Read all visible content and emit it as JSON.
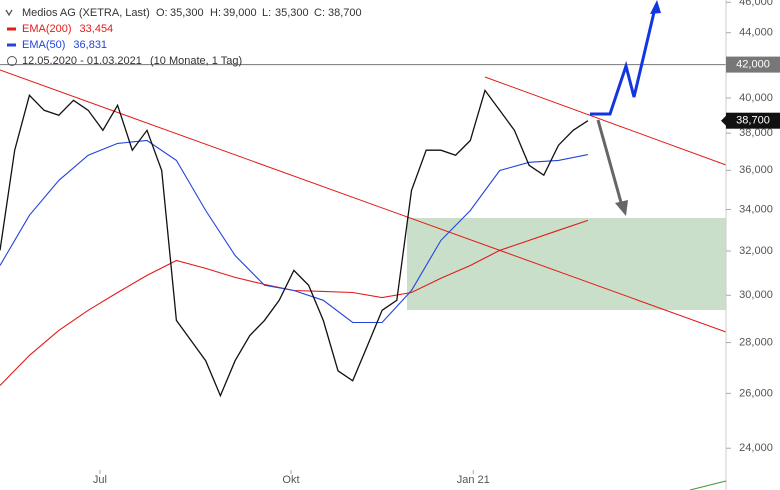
{
  "chart_data": {
    "type": "line",
    "log_scale": true,
    "info": {
      "instrument": "Medios AG (XETRA, Last)",
      "ohlc": [
        {
          "label": "O:",
          "value": "35,300"
        },
        {
          "label": "H:",
          "value": "39,000"
        },
        {
          "label": "L:",
          "value": "35,300"
        },
        {
          "label": "C:",
          "value": "38,700"
        }
      ],
      "period": "12.05.2020 - 01.03.2021",
      "period_note": "(10 Monate, 1 Tag)"
    },
    "xlim": [
      0,
      247
    ],
    "xticks": [
      {
        "value": 34,
        "label": "Jul"
      },
      {
        "value": 99,
        "label": "Okt"
      },
      {
        "value": 161,
        "label": "Jan 21"
      }
    ],
    "ylim": [
      23250,
      46150
    ],
    "yticks": [
      {
        "value": 24000,
        "label": "24,000"
      },
      {
        "value": 26000,
        "label": "26,000"
      },
      {
        "value": 28000,
        "label": "28,000"
      },
      {
        "value": 30000,
        "label": "30,000"
      },
      {
        "value": 32000,
        "label": "32,000"
      },
      {
        "value": 34000,
        "label": "34,000"
      },
      {
        "value": 36000,
        "label": "36,000"
      },
      {
        "value": 38000,
        "label": "38,000"
      },
      {
        "value": 40000,
        "label": "40,000"
      },
      {
        "value": 42000,
        "label": "42,000"
      },
      {
        "value": 44000,
        "label": "44,000"
      },
      {
        "value": 46000,
        "label": "46,000"
      }
    ],
    "reference_line": {
      "value": 42000,
      "label": "42,000"
    },
    "last_price": {
      "value": 38700,
      "label": "38,700"
    },
    "series": [
      {
        "name": "EMA(200)",
        "color": "#e31b1b",
        "last_label": "33,454",
        "x": [
          0,
          10,
          20,
          30,
          40,
          50,
          60,
          70,
          80,
          90,
          100,
          110,
          120,
          130,
          140,
          150,
          160,
          170,
          180,
          190,
          200
        ],
        "values": [
          26300,
          27480,
          28500,
          29350,
          30120,
          30880,
          31560,
          31200,
          30790,
          30480,
          30210,
          30170,
          30120,
          29900,
          30120,
          30750,
          31330,
          32030,
          32500,
          32980,
          33460
        ]
      },
      {
        "name": "EMA(50)",
        "color": "#2244dd",
        "last_label": "36,831",
        "x": [
          0,
          10,
          20,
          30,
          40,
          50,
          60,
          70,
          80,
          90,
          100,
          110,
          120,
          130,
          140,
          150,
          160,
          170,
          180,
          190,
          200
        ],
        "values": [
          31330,
          33710,
          35470,
          36800,
          37440,
          37600,
          36520,
          33950,
          31790,
          30440,
          30210,
          29780,
          28830,
          28830,
          30210,
          32500,
          33950,
          35990,
          36420,
          36520,
          36830
        ]
      },
      {
        "name": "Medios AG (XETRA, Last)",
        "color": "#111111",
        "x": [
          0,
          5,
          10,
          15,
          20,
          25,
          30,
          35,
          40,
          45,
          50,
          55,
          60,
          65,
          70,
          75,
          80,
          85,
          90,
          95,
          100,
          105,
          110,
          115,
          120,
          125,
          130,
          135,
          140,
          145,
          150,
          155,
          160,
          165,
          170,
          175,
          180,
          185,
          190,
          195,
          200
        ],
        "values": [
          32030,
          37070,
          40160,
          39290,
          39010,
          39870,
          39290,
          38160,
          39580,
          37070,
          38160,
          35990,
          28920,
          28080,
          27270,
          25910,
          27270,
          28290,
          28920,
          29780,
          31110,
          30440,
          28920,
          26870,
          26480,
          27870,
          29350,
          29780,
          34960,
          37070,
          37070,
          36800,
          37600,
          40450,
          39290,
          38160,
          36260,
          35740,
          37340,
          38160,
          38700
        ]
      }
    ]
  }
}
